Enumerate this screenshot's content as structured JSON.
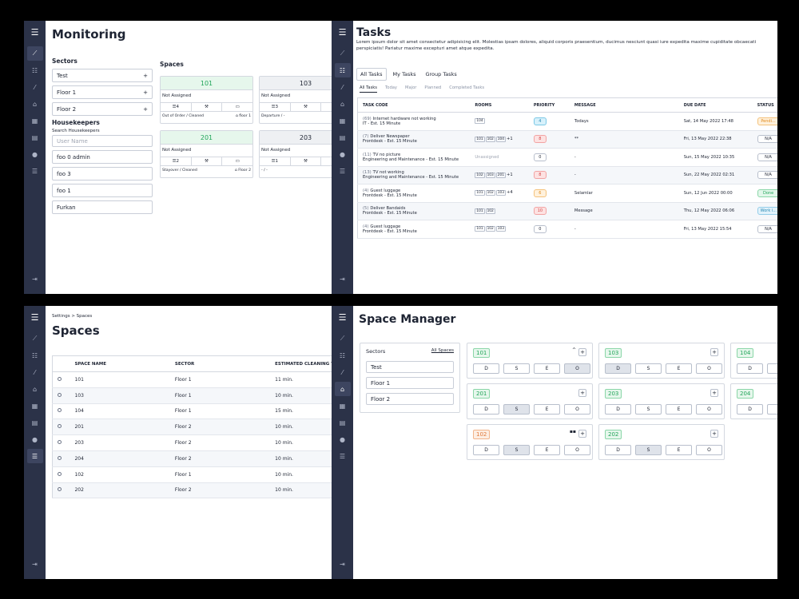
{
  "nav_icons": [
    "menu-icon",
    "chart-icon",
    "list-icon",
    "broom-icon",
    "home-icon",
    "calendar-icon",
    "clipboard-icon",
    "user-icon",
    "sliders-icon",
    "logout-icon"
  ],
  "icons": {
    "menu": "☰",
    "chart": "⟋",
    "list": "☷",
    "broom": "⁄",
    "home": "⌂",
    "calendar": "▦",
    "clipboard": "▤",
    "user": "●",
    "sliders": "☰",
    "logout": "⇥",
    "plus": "+",
    "tasks": "☰",
    "tools": "⚒",
    "bed": "▭",
    "home_small": "⌂"
  },
  "monitoring": {
    "title": "Monitoring",
    "sectors_label": "Sectors",
    "sectors": [
      "Test",
      "Floor 1",
      "Floor 2"
    ],
    "housekeepers_label": "Housekeepers",
    "search_label": "Search Housekeepers",
    "search_placeholder": "User Name",
    "housekeepers": [
      "foo 0 admin",
      "foo 3",
      "foo 1",
      "Furkan"
    ],
    "spaces_label": "Spaces",
    "cards": [
      {
        "num": "101",
        "assign": "Not Assigned",
        "tasks": "4",
        "status": "Out of Order / Cleaned",
        "floor": "floor 1",
        "color": "green"
      },
      {
        "num": "103",
        "assign": "Not Assigned",
        "tasks": "3",
        "status": "Departure / -",
        "floor": "",
        "color": "grey"
      },
      {
        "num": "201",
        "assign": "Not Assigned",
        "tasks": "2",
        "status": "Stayover / Cleaned",
        "floor": "Floor 2",
        "color": "green"
      },
      {
        "num": "203",
        "assign": "Not Assigned",
        "tasks": "1",
        "status": "- / -",
        "floor": "",
        "color": "grey"
      }
    ]
  },
  "tasks": {
    "title": "Tasks",
    "desc": "Lorem ipsum dolor sit amet consectetur adipisicing elit. Molestias ipsam dolores, aliquid corporis praesentium, ducimus nesciunt quasi iure expedita maxime cupiditate obcaecati perspiciatis! Pariatur maxime excepturi amet atque expedita.",
    "tabs": [
      "All Tasks",
      "My Tasks",
      "Group Tasks"
    ],
    "subtabs": [
      "All Tasks",
      "Today",
      "Major",
      "Planned",
      "Completed Tasks"
    ],
    "headers": [
      "TASK CODE",
      "ROOMS",
      "PRIORITY",
      "MESSAGE",
      "DUE DATE",
      "STATUS"
    ],
    "rows": [
      {
        "code": "(69)",
        "name": "Internet hardware not working",
        "dept": "IT - Est. 15 Minute",
        "rooms": [
          "104"
        ],
        "extra": "",
        "priority": "4",
        "pclass": "p-blue",
        "message": "Todays",
        "due": "Sat, 14 May 2022 17:48",
        "status": "Pendi...",
        "sclass": "p-orange"
      },
      {
        "code": "(7)",
        "name": "Deliver Newspaper",
        "dept": "Frontdesk - Est. 15 Minute",
        "rooms": [
          "101",
          "102",
          "104"
        ],
        "extra": "+1",
        "priority": "8",
        "pclass": "p-red",
        "message": "**",
        "due": "Fri, 13 May 2022 22:38",
        "status": "N/A",
        "sclass": "p-white"
      },
      {
        "code": "(11)",
        "name": "TV no picture",
        "dept": "Engineering and Maintenance - Est. 15 Minute",
        "rooms": [],
        "extra": "Unassigned",
        "priority": "0",
        "pclass": "p-white",
        "message": "-",
        "due": "Sun, 15 May 2022 10:35",
        "status": "N/A",
        "sclass": "p-white"
      },
      {
        "code": "(13)",
        "name": "TV not working",
        "dept": "Engineering and Maintenance - Est. 15 Minute",
        "rooms": [
          "102",
          "103",
          "201"
        ],
        "extra": "+1",
        "priority": "8",
        "pclass": "p-red",
        "message": "-",
        "due": "Sun, 22 May 2022 02:31",
        "status": "N/A",
        "sclass": "p-white"
      },
      {
        "code": "(4)",
        "name": "Guest luggage",
        "dept": "Frontdesk - Est. 15 Minute",
        "rooms": [
          "101",
          "102",
          "103"
        ],
        "extra": "+4",
        "priority": "6",
        "pclass": "p-orange",
        "message": "Selamlar",
        "due": "Sun, 12 Jun 2022 00:00",
        "status": "Done",
        "sclass": "s-green"
      },
      {
        "code": "(5)",
        "name": "Deliver Bandaids",
        "dept": "Frontdesk - Est. 15 Minute",
        "rooms": [
          "101",
          "102"
        ],
        "extra": "",
        "priority": "10",
        "pclass": "p-red",
        "message": "Message",
        "due": "Thu, 12 May 2022 06:06",
        "status": "Work i...",
        "sclass": "s-blue"
      },
      {
        "code": "(4)",
        "name": "Guest luggage",
        "dept": "Frontdesk - Est. 15 Minute",
        "rooms": [
          "101",
          "102",
          "103"
        ],
        "extra": "",
        "priority": "0",
        "pclass": "p-white",
        "message": "-",
        "due": "Fri, 13 May 2022 15:54",
        "status": "N/A",
        "sclass": "p-white"
      }
    ]
  },
  "spaces": {
    "breadcrumb_parent": "Settings",
    "breadcrumb_sep": ">",
    "breadcrumb_current": "Spaces",
    "title": "Spaces",
    "headers": [
      "SPACE NAME",
      "SECTOR",
      "ESTIMATED CLEANING T"
    ],
    "rows": [
      {
        "name": "101",
        "sector": "Floor 1",
        "time": "11 min."
      },
      {
        "name": "103",
        "sector": "Floor 1",
        "time": "10 min."
      },
      {
        "name": "104",
        "sector": "Floor 1",
        "time": "15 min."
      },
      {
        "name": "201",
        "sector": "Floor 2",
        "time": "10 min."
      },
      {
        "name": "203",
        "sector": "Floor 2",
        "time": "10 min."
      },
      {
        "name": "204",
        "sector": "Floor 2",
        "time": "10 min."
      },
      {
        "name": "102",
        "sector": "Floor 1",
        "time": "10 min."
      },
      {
        "name": "202",
        "sector": "Floor 2",
        "time": "10 min."
      }
    ]
  },
  "space_manager": {
    "title": "Space Manager",
    "sectors_label": "Sectors",
    "all_spaces": "All Spaces",
    "sectors": [
      "Test",
      "Floor 1",
      "Floor 2"
    ],
    "button_labels": [
      "D",
      "S",
      "E",
      "O"
    ],
    "cards": [
      {
        "num": "101",
        "color": "b-green",
        "active": 3,
        "extra": "^"
      },
      {
        "num": "103",
        "color": "b-green",
        "active": 0,
        "extra": ""
      },
      {
        "num": "104",
        "color": "b-green",
        "active": -1,
        "extra": ""
      },
      {
        "num": "201",
        "color": "b-green",
        "active": 1,
        "extra": ""
      },
      {
        "num": "203",
        "color": "b-green",
        "active": -1,
        "extra": ""
      },
      {
        "num": "204",
        "color": "b-green",
        "active": -1,
        "extra": ""
      },
      {
        "num": "102",
        "color": "b-orange",
        "active": 1,
        "extra": "▪▪"
      },
      {
        "num": "202",
        "color": "b-green",
        "active": 1,
        "extra": ""
      }
    ]
  }
}
